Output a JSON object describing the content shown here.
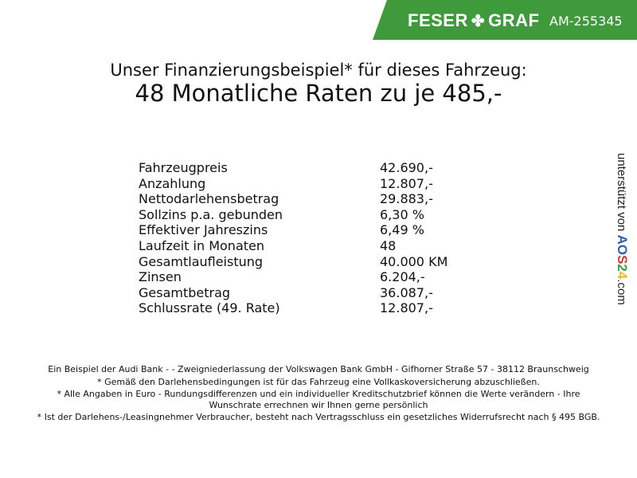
{
  "header": {
    "brand": "FESER",
    "brand2": "GRAF",
    "id": "AM-255345",
    "color": "#3f9a3c"
  },
  "title": {
    "line1": "Unser Finanzierungsbeispiel* für dieses Fahrzeug:",
    "line2": "48 Monatliche Raten zu je 485,-"
  },
  "rows": [
    {
      "label": "Fahrzeugpreis",
      "value": "42.690,-"
    },
    {
      "label": "Anzahlung",
      "value": "12.807,-"
    },
    {
      "label": "Nettodarlehensbetrag",
      "value": "29.883,-"
    },
    {
      "label": "Sollzins p.a. gebunden",
      "value": "6,30 %"
    },
    {
      "label": "Effektiver Jahreszins",
      "value": "6,49 %"
    },
    {
      "label": "Laufzeit in Monaten",
      "value": "48"
    },
    {
      "label": "Gesamtlaufleistung",
      "value": "40.000 KM"
    },
    {
      "label": "Zinsen",
      "value": "6.204,-"
    },
    {
      "label": "Gesamtbetrag",
      "value": "36.087,-"
    },
    {
      "label": "Schlussrate (49. Rate)",
      "value": "12.807,-"
    }
  ],
  "side": {
    "prefix": "unterstützt von",
    "logo": [
      "A",
      "O",
      "S",
      "2",
      "4"
    ],
    "suffix": ".com"
  },
  "footer": [
    "Ein Beispiel der Audi Bank -  - Zweigniederlassung der Volkswagen Bank GmbH - Gifhorner Straße 57 - 38112 Braunschweig",
    "* Gemäß den Darlehensbedingungen ist für das Fahrzeug eine Vollkaskoversicherung abzuschließen.",
    "* Alle Angaben in Euro - Rundungsdifferenzen und ein individueller Kreditschutzbrief können die Werte verändern - Ihre Wunschrate errechnen wir Ihnen gerne persönlich",
    "* Ist der Darlehens-/Leasingnehmer Verbraucher, besteht nach Vertragsschluss ein gesetzliches Widerrufsrecht nach § 495 BGB."
  ]
}
